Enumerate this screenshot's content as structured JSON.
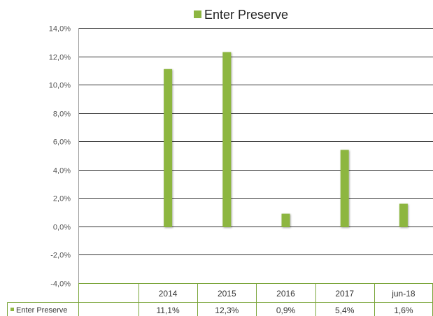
{
  "chart_data": {
    "type": "bar",
    "title": "Enter Preserve",
    "categories": [
      "2014",
      "2015",
      "2016",
      "2017",
      "jun-18"
    ],
    "series": [
      {
        "name": "Enter Preserve",
        "values": [
          11.1,
          12.3,
          0.9,
          5.4,
          1.6
        ],
        "value_labels": [
          "11,1%",
          "12,3%",
          "0,9%",
          "5,4%",
          "1,6%"
        ],
        "color": "#8db641"
      }
    ],
    "ylim": [
      -4.0,
      14.0
    ],
    "yticks": [
      -4.0,
      -2.0,
      0.0,
      2.0,
      4.0,
      6.0,
      8.0,
      10.0,
      12.0,
      14.0
    ],
    "ytick_labels": [
      "-4,0%",
      "-2,0%",
      "0,0%",
      "2,0%",
      "4,0%",
      "6,0%",
      "8,0%",
      "10,0%",
      "12,0%",
      "14,0%"
    ],
    "grid": true,
    "legend_position": "top",
    "data_table": true,
    "gridline_color": "#333333",
    "table_border_color": "#7aa53a"
  }
}
